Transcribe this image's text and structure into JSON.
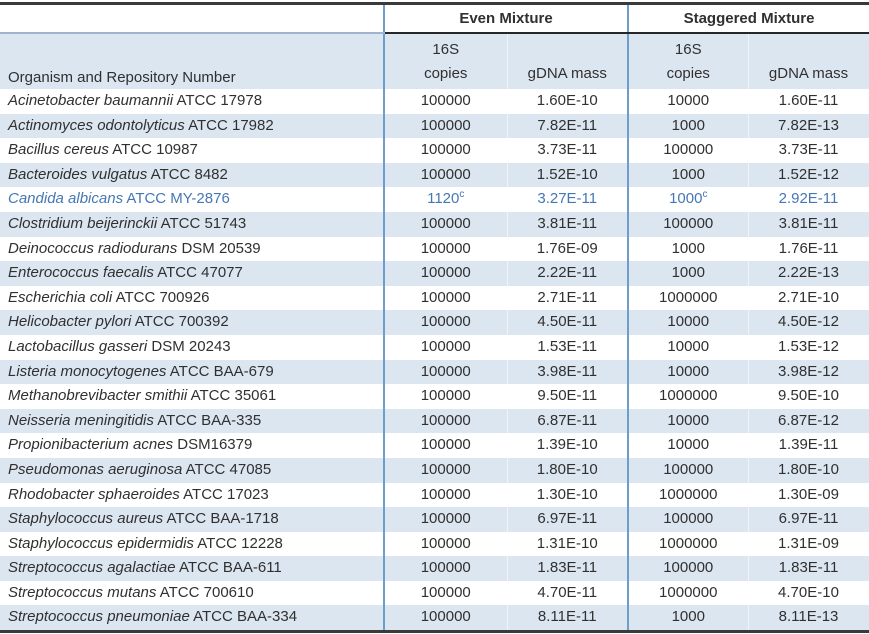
{
  "table": {
    "group_headers": {
      "even": "Even Mixture",
      "staggered": "Staggered Mixture"
    },
    "organism_header": "Organism and Repository Number",
    "sub_headers": {
      "copies_line1": "16S",
      "copies_line2": "copies",
      "gdna": "gDNA mass"
    },
    "colors": {
      "stripe": "#dce6f1",
      "section_line": "#6d9dca",
      "dark_border": "#3a3a3a",
      "highlight_text": "#4677b4"
    },
    "rows": [
      {
        "organism_italic": "Acinetobacter baumannii",
        "organism_plain": "ATCC 17978",
        "even_copies": "100000",
        "even_gdna": "1.60E-10",
        "stag_copies": "10000",
        "stag_gdna": "1.60E-11",
        "highlight": false
      },
      {
        "organism_italic": "Actinomyces odontolyticus",
        "organism_plain": "ATCC 17982",
        "even_copies": "100000",
        "even_gdna": "7.82E-11",
        "stag_copies": "1000",
        "stag_gdna": "7.82E-13",
        "highlight": false
      },
      {
        "organism_italic": "Bacillus cereus",
        "organism_plain": "ATCC 10987",
        "even_copies": "100000",
        "even_gdna": "3.73E-11",
        "stag_copies": "100000",
        "stag_gdna": "3.73E-11",
        "highlight": false
      },
      {
        "organism_italic": "Bacteroides vulgatus",
        "organism_plain": "ATCC 8482",
        "even_copies": "100000",
        "even_gdna": "1.52E-10",
        "stag_copies": "1000",
        "stag_gdna": "1.52E-12",
        "highlight": false
      },
      {
        "organism_italic": "Candida albicans",
        "organism_plain": "ATCC MY-2876",
        "even_copies": "1120",
        "even_copies_sup": "c",
        "even_gdna": "3.27E-11",
        "stag_copies": "1000",
        "stag_copies_sup": "c",
        "stag_gdna": "2.92E-11",
        "highlight": true
      },
      {
        "organism_italic": "Clostridium beijerinckii",
        "organism_plain": "ATCC 51743",
        "even_copies": "100000",
        "even_gdna": "3.81E-11",
        "stag_copies": "100000",
        "stag_gdna": "3.81E-11",
        "highlight": false
      },
      {
        "organism_italic": "Deinococcus radiodurans",
        "organism_plain": "DSM 20539",
        "even_copies": "100000",
        "even_gdna": "1.76E-09",
        "stag_copies": "1000",
        "stag_gdna": "1.76E-11",
        "highlight": false
      },
      {
        "organism_italic": "Enterococcus faecalis",
        "organism_plain": "ATCC 47077",
        "even_copies": "100000",
        "even_gdna": "2.22E-11",
        "stag_copies": "1000",
        "stag_gdna": "2.22E-13",
        "highlight": false
      },
      {
        "organism_italic": "Escherichia coli",
        "organism_plain": "ATCC 700926",
        "even_copies": "100000",
        "even_gdna": "2.71E-11",
        "stag_copies": "1000000",
        "stag_gdna": "2.71E-10",
        "highlight": false
      },
      {
        "organism_italic": "Helicobacter pylori",
        "organism_plain": "ATCC 700392",
        "even_copies": "100000",
        "even_gdna": "4.50E-11",
        "stag_copies": "10000",
        "stag_gdna": "4.50E-12",
        "highlight": false
      },
      {
        "organism_italic": "Lactobacillus gasseri",
        "organism_plain": "DSM 20243",
        "even_copies": "100000",
        "even_gdna": "1.53E-11",
        "stag_copies": "10000",
        "stag_gdna": "1.53E-12",
        "highlight": false
      },
      {
        "organism_italic": "Listeria monocytogenes",
        "organism_plain": "ATCC BAA-679",
        "even_copies": "100000",
        "even_gdna": "3.98E-11",
        "stag_copies": "10000",
        "stag_gdna": "3.98E-12",
        "highlight": false
      },
      {
        "organism_italic": "Methanobrevibacter smithii",
        "organism_plain": "ATCC 35061",
        "even_copies": "100000",
        "even_gdna": "9.50E-11",
        "stag_copies": "1000000",
        "stag_gdna": "9.50E-10",
        "highlight": false
      },
      {
        "organism_italic": "Neisseria meningitidis",
        "organism_plain": "ATCC BAA-335",
        "even_copies": "100000",
        "even_gdna": "6.87E-11",
        "stag_copies": "10000",
        "stag_gdna": "6.87E-12",
        "highlight": false
      },
      {
        "organism_italic": "Propionibacterium acnes",
        "organism_plain": "DSM16379",
        "even_copies": "100000",
        "even_gdna": "1.39E-10",
        "stag_copies": "10000",
        "stag_gdna": "1.39E-11",
        "highlight": false
      },
      {
        "organism_italic": "Pseudomonas aeruginosa",
        "organism_plain": "ATCC 47085",
        "even_copies": "100000",
        "even_gdna": "1.80E-10",
        "stag_copies": "100000",
        "stag_gdna": "1.80E-10",
        "highlight": false
      },
      {
        "organism_italic": "Rhodobacter sphaeroides",
        "organism_plain": "ATCC 17023",
        "even_copies": "100000",
        "even_gdna": "1.30E-10",
        "stag_copies": "1000000",
        "stag_gdna": "1.30E-09",
        "highlight": false
      },
      {
        "organism_italic": "Staphylococcus aureus",
        "organism_plain": "ATCC BAA-1718",
        "even_copies": "100000",
        "even_gdna": "6.97E-11",
        "stag_copies": "100000",
        "stag_gdna": "6.97E-11",
        "highlight": false
      },
      {
        "organism_italic": "Staphylococcus epidermidis",
        "organism_plain": "ATCC 12228",
        "even_copies": "100000",
        "even_gdna": "1.31E-10",
        "stag_copies": "1000000",
        "stag_gdna": "1.31E-09",
        "highlight": false
      },
      {
        "organism_italic": "Streptococcus agalactiae",
        "organism_plain": "ATCC BAA-611",
        "even_copies": "100000",
        "even_gdna": "1.83E-11",
        "stag_copies": "100000",
        "stag_gdna": "1.83E-11",
        "highlight": false
      },
      {
        "organism_italic": "Streptococcus mutans",
        "organism_plain": "ATCC 700610",
        "even_copies": "100000",
        "even_gdna": "4.70E-11",
        "stag_copies": "1000000",
        "stag_gdna": "4.70E-10",
        "highlight": false
      },
      {
        "organism_italic": "Streptococcus pneumoniae",
        "organism_plain": "ATCC BAA-334",
        "even_copies": "100000",
        "even_gdna": "8.11E-11",
        "stag_copies": "1000",
        "stag_gdna": "8.11E-13",
        "highlight": false
      }
    ]
  }
}
